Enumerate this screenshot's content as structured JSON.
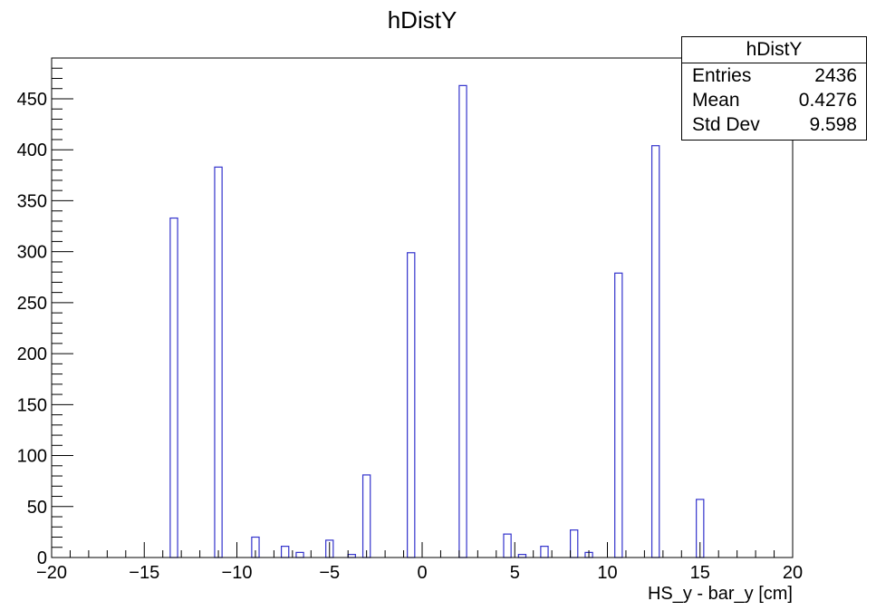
{
  "chart_data": {
    "type": "bar",
    "title": "hDistY",
    "xlabel": "HS_y - bar_y [cm]",
    "ylabel": "",
    "xlim": [
      -20,
      20
    ],
    "ylim": [
      0,
      490
    ],
    "x_ticks": [
      "−20",
      "−15",
      "−10",
      "−5",
      "0",
      "5",
      "10",
      "15",
      "20"
    ],
    "y_ticks": [
      "0",
      "50",
      "100",
      "150",
      "200",
      "250",
      "300",
      "350",
      "400",
      "450"
    ],
    "bin_width": 0.4,
    "bars": [
      {
        "x": -13.4,
        "value": 333
      },
      {
        "x": -11.0,
        "value": 383
      },
      {
        "x": -9.0,
        "value": 20
      },
      {
        "x": -7.4,
        "value": 11
      },
      {
        "x": -6.6,
        "value": 5
      },
      {
        "x": -5.0,
        "value": 17
      },
      {
        "x": -3.8,
        "value": 3
      },
      {
        "x": -3.0,
        "value": 81
      },
      {
        "x": -0.6,
        "value": 299
      },
      {
        "x": 2.2,
        "value": 463
      },
      {
        "x": 4.6,
        "value": 23
      },
      {
        "x": 5.4,
        "value": 3
      },
      {
        "x": 6.6,
        "value": 11
      },
      {
        "x": 8.2,
        "value": 27
      },
      {
        "x": 9.0,
        "value": 5
      },
      {
        "x": 10.6,
        "value": 279
      },
      {
        "x": 12.6,
        "value": 404
      },
      {
        "x": 15.0,
        "value": 57
      }
    ],
    "line_color": "#3333cc",
    "grid": false,
    "legend": "none"
  },
  "stats_box": {
    "title": "hDistY",
    "rows": [
      {
        "label": "Entries",
        "value": "2436"
      },
      {
        "label": "Mean",
        "value": "0.4276"
      },
      {
        "label": "Std Dev",
        "value": "9.598"
      }
    ]
  }
}
